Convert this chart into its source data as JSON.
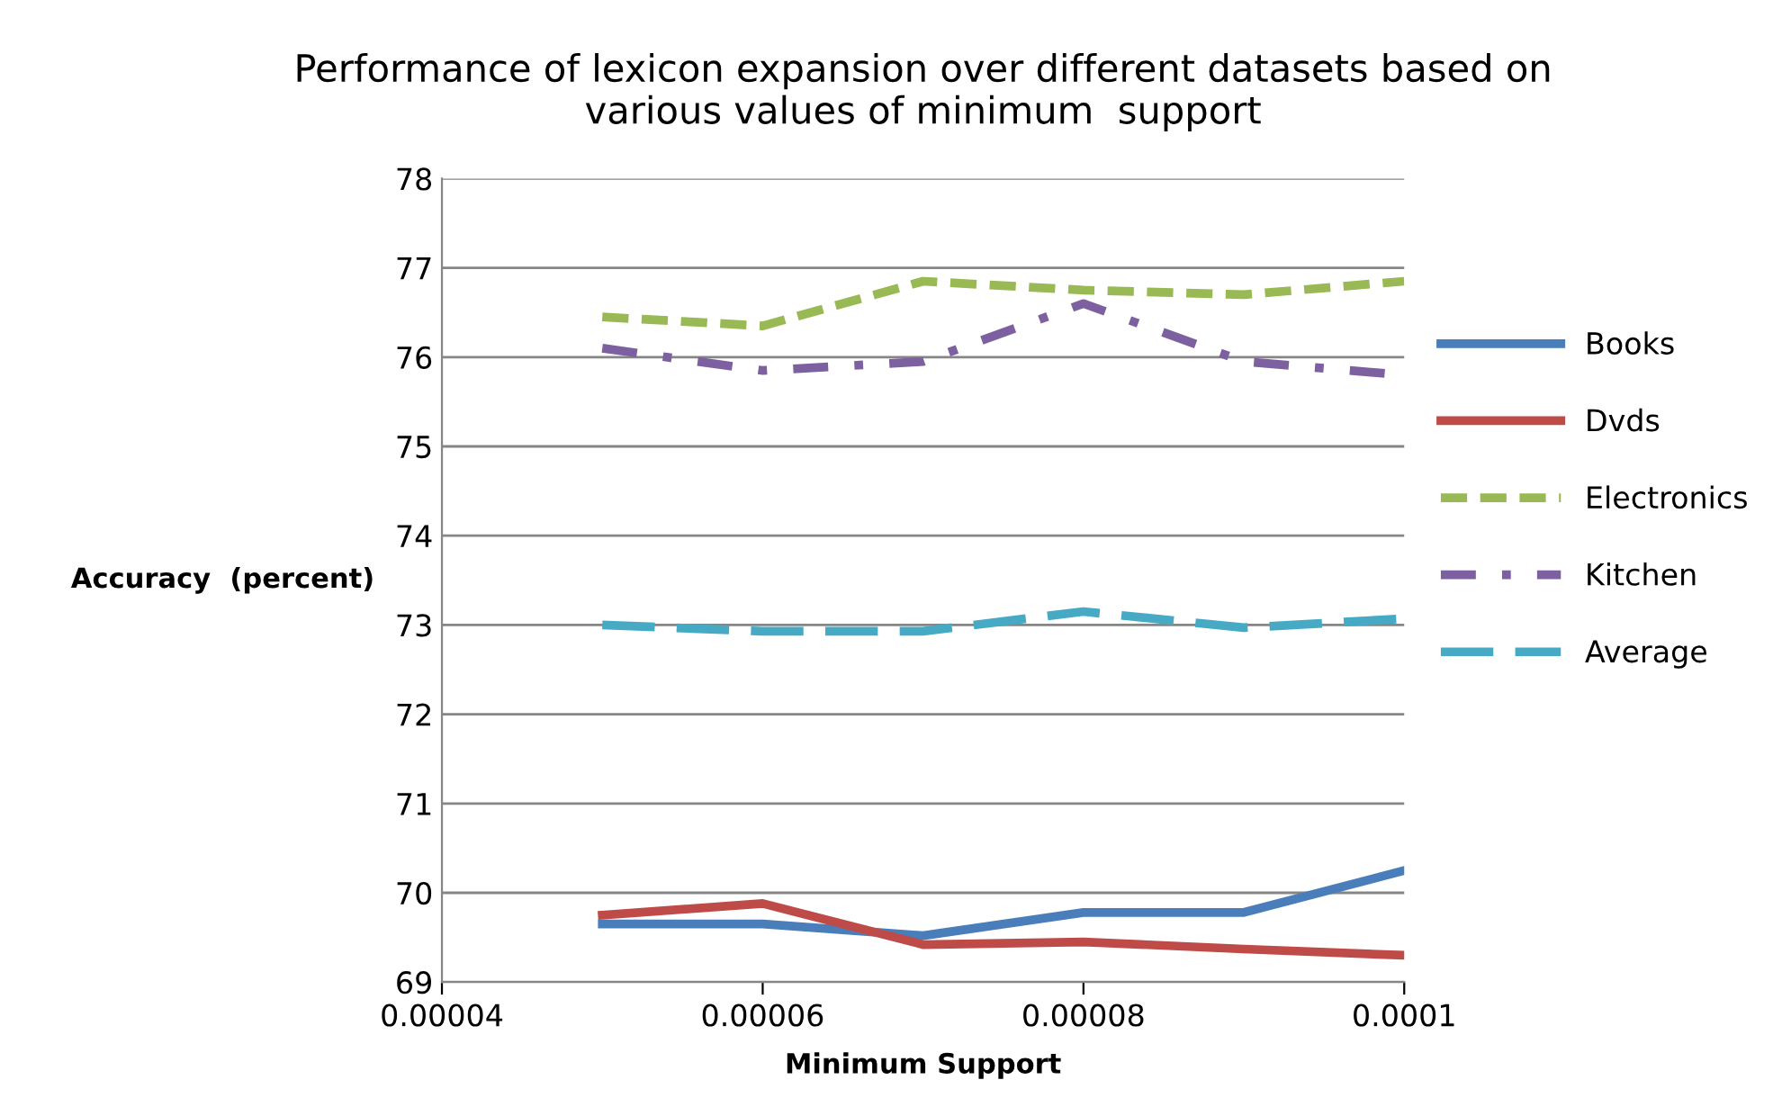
{
  "chart_data": {
    "type": "line",
    "title": "Performance of lexicon expansion over different datasets based on\nvarious values of minimum  support",
    "xlabel": "Minimum Support",
    "ylabel": "Accuracy  (percent)",
    "x": [
      5e-05,
      6e-05,
      7e-05,
      8e-05,
      9e-05,
      0.0001
    ],
    "series": [
      {
        "name": "Books",
        "color": "#4a7ebb",
        "line_style": "solid",
        "values": [
          69.65,
          69.65,
          69.52,
          69.78,
          69.78,
          70.25
        ]
      },
      {
        "name": "Dvds",
        "color": "#be4b48",
        "line_style": "solid",
        "values": [
          69.75,
          69.88,
          69.42,
          69.45,
          69.37,
          69.3
        ]
      },
      {
        "name": "Electronics",
        "color": "#98b954",
        "line_style": "dashed",
        "values": [
          76.45,
          76.35,
          76.85,
          76.75,
          76.7,
          76.85
        ]
      },
      {
        "name": "Kitchen",
        "color": "#7d60a0",
        "line_style": "dashdot",
        "values": [
          76.1,
          75.85,
          75.95,
          76.6,
          75.95,
          75.8
        ]
      },
      {
        "name": "Average",
        "color": "#46aac5",
        "line_style": "longdash",
        "values": [
          73.0,
          72.93,
          72.93,
          73.15,
          72.97,
          73.07
        ]
      }
    ],
    "xlim": [
      4e-05,
      0.0001
    ],
    "xticks": [
      {
        "value": 4e-05,
        "label": "0.00004"
      },
      {
        "value": 6e-05,
        "label": "0.00006"
      },
      {
        "value": 8e-05,
        "label": "0.00008"
      },
      {
        "value": 0.0001,
        "label": "0.0001"
      }
    ],
    "ylim": [
      69,
      78
    ],
    "yticks": [
      69,
      70,
      71,
      72,
      73,
      74,
      75,
      76,
      77,
      78
    ],
    "grid": "y",
    "legend": "right",
    "marker": "none"
  }
}
